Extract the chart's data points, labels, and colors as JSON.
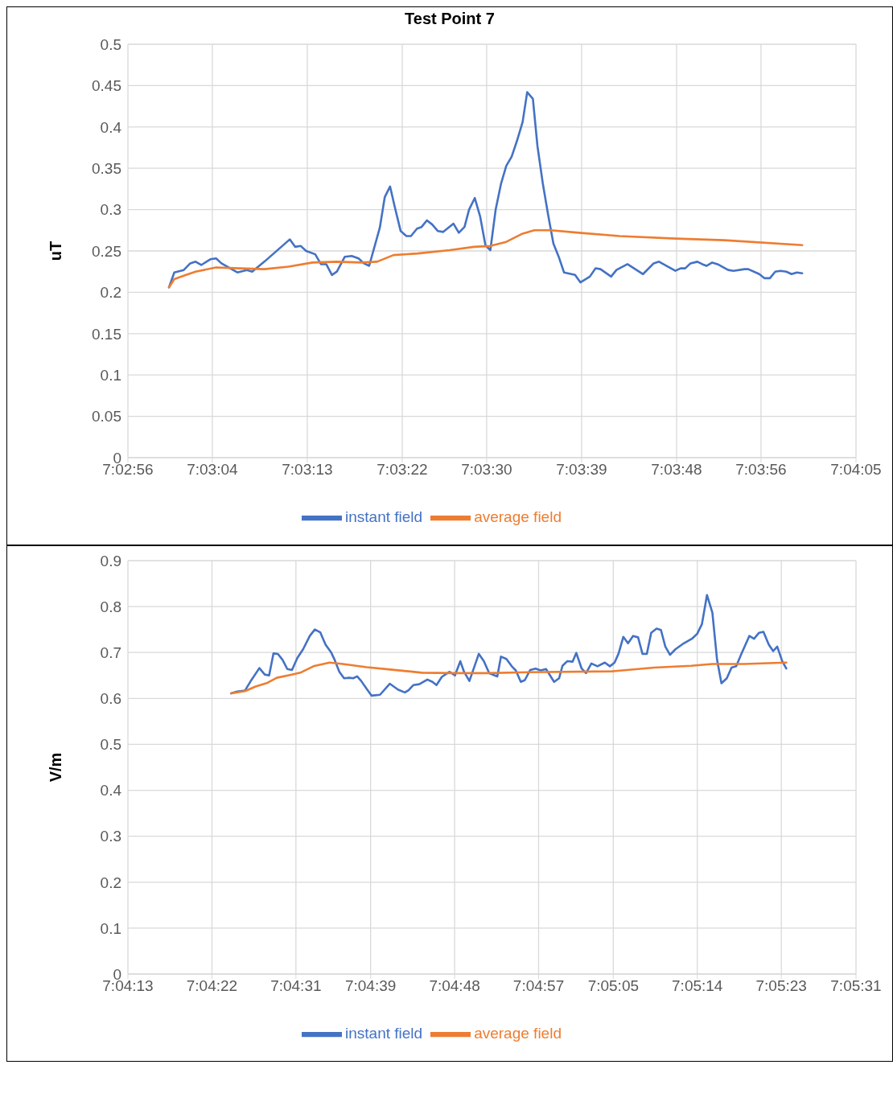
{
  "chart_data": [
    {
      "type": "line",
      "title": "Test Point 7",
      "ylabel": "uT",
      "xlim": [
        7.048889,
        7.068056
      ],
      "xticks": [
        {
          "value": 7.048889,
          "label": "7:02:56"
        },
        {
          "value": 7.051111,
          "label": "7:03:04"
        },
        {
          "value": 7.053611,
          "label": "7:03:13"
        },
        {
          "value": 7.056111,
          "label": "7:03:22"
        },
        {
          "value": 7.058333,
          "label": "7:03:30"
        },
        {
          "value": 7.060833,
          "label": "7:03:39"
        },
        {
          "value": 7.063333,
          "label": "7:03:48"
        },
        {
          "value": 7.065556,
          "label": "7:03:56"
        },
        {
          "value": 7.068056,
          "label": "7:04:05"
        }
      ],
      "ylim": [
        0,
        0.5
      ],
      "yticks": [
        0,
        0.05,
        0.1,
        0.15,
        0.2,
        0.25,
        0.3,
        0.35,
        0.4,
        0.45,
        0.5
      ],
      "grid": true,
      "legend": "bottom",
      "marker": "none",
      "line_style": "solid",
      "series": [
        {
          "name": "instant field",
          "color": "#4472c4",
          "x": [
            7.04997,
            7.05011,
            7.05036,
            7.05053,
            7.05067,
            7.05082,
            7.05106,
            7.05121,
            7.05135,
            7.05177,
            7.05202,
            7.05216,
            7.05248,
            7.05315,
            7.05329,
            7.05344,
            7.05358,
            7.05382,
            7.05397,
            7.05411,
            7.05426,
            7.05439,
            7.0546,
            7.05478,
            7.05496,
            7.0551,
            7.05524,
            7.05552,
            7.05565,
            7.05579,
            7.05591,
            7.05607,
            7.05622,
            7.05634,
            7.0565,
            7.05662,
            7.05676,
            7.0569,
            7.05705,
            7.05719,
            7.05746,
            7.0576,
            7.05775,
            7.05787,
            7.05802,
            7.05816,
            7.0583,
            7.05843,
            7.05857,
            7.05871,
            7.05885,
            7.05899,
            7.05913,
            7.05928,
            7.0594,
            7.05955,
            7.05967,
            7.05981,
            7.05995,
            7.06009,
            7.06023,
            7.06037,
            7.06066,
            7.0608,
            7.06105,
            7.0612,
            7.06133,
            7.06161,
            7.06175,
            7.06204,
            7.06245,
            7.06273,
            7.06287,
            7.0633,
            7.06344,
            7.06356,
            7.0637,
            7.06388,
            7.06401,
            7.06412,
            7.06427,
            7.06441,
            7.06469,
            7.06483,
            7.06512,
            7.06522,
            7.06551,
            7.06565,
            7.06579,
            7.06593,
            7.06607,
            7.06622,
            7.06636,
            7.0665,
            7.06664
          ],
          "values": [
            0.206,
            0.224,
            0.227,
            0.235,
            0.237,
            0.233,
            0.24,
            0.241,
            0.235,
            0.224,
            0.227,
            0.225,
            0.237,
            0.264,
            0.255,
            0.256,
            0.25,
            0.246,
            0.234,
            0.234,
            0.221,
            0.225,
            0.243,
            0.244,
            0.241,
            0.235,
            0.232,
            0.278,
            0.315,
            0.328,
            0.304,
            0.274,
            0.268,
            0.268,
            0.277,
            0.279,
            0.287,
            0.282,
            0.274,
            0.273,
            0.283,
            0.272,
            0.279,
            0.3,
            0.314,
            0.292,
            0.257,
            0.251,
            0.3,
            0.331,
            0.353,
            0.364,
            0.383,
            0.406,
            0.442,
            0.434,
            0.377,
            0.332,
            0.294,
            0.259,
            0.243,
            0.224,
            0.221,
            0.212,
            0.219,
            0.229,
            0.228,
            0.219,
            0.227,
            0.234,
            0.222,
            0.235,
            0.237,
            0.226,
            0.229,
            0.229,
            0.235,
            0.237,
            0.234,
            0.232,
            0.236,
            0.234,
            0.227,
            0.226,
            0.228,
            0.228,
            0.222,
            0.217,
            0.217,
            0.225,
            0.226,
            0.225,
            0.222,
            0.224,
            0.223
          ]
        },
        {
          "name": "average field",
          "color": "#ed7d31",
          "x": [
            7.04997,
            7.05011,
            7.05036,
            7.05067,
            7.05121,
            7.05184,
            7.05248,
            7.05312,
            7.05375,
            7.05439,
            7.05503,
            7.05545,
            7.05588,
            7.05652,
            7.05736,
            7.058,
            7.05843,
            7.05885,
            7.05928,
            7.05959,
            7.06002,
            7.06076,
            7.06183,
            7.06331,
            7.06459,
            7.06664
          ],
          "values": [
            0.206,
            0.216,
            0.22,
            0.225,
            0.23,
            0.229,
            0.228,
            0.231,
            0.236,
            0.237,
            0.236,
            0.237,
            0.245,
            0.247,
            0.251,
            0.255,
            0.256,
            0.261,
            0.271,
            0.275,
            0.275,
            0.272,
            0.268,
            0.265,
            0.263,
            0.257
          ]
        }
      ]
    },
    {
      "type": "line",
      "ylabel": "V/m",
      "xlim": [
        7.070278,
        7.091944
      ],
      "xticks": [
        {
          "value": 7.070278,
          "label": "7:04:13"
        },
        {
          "value": 7.072778,
          "label": "7:04:22"
        },
        {
          "value": 7.075278,
          "label": "7:04:31"
        },
        {
          "value": 7.0775,
          "label": "7:04:39"
        },
        {
          "value": 7.08,
          "label": "7:04:48"
        },
        {
          "value": 7.0825,
          "label": "7:04:57"
        },
        {
          "value": 7.084722,
          "label": "7:05:05"
        },
        {
          "value": 7.087222,
          "label": "7:05:14"
        },
        {
          "value": 7.089722,
          "label": "7:05:23"
        },
        {
          "value": 7.091944,
          "label": "7:05:31"
        }
      ],
      "ylim": [
        0,
        0.9
      ],
      "yticks": [
        0,
        0.1,
        0.2,
        0.3,
        0.4,
        0.5,
        0.6,
        0.7,
        0.8,
        0.9
      ],
      "grid": true,
      "legend": "bottom",
      "marker": "none",
      "line_style": "solid",
      "series": [
        {
          "name": "instant field",
          "color": "#4472c4",
          "x": [
            7.07335,
            7.07353,
            7.07376,
            7.07396,
            7.07419,
            7.07435,
            7.07448,
            7.07461,
            7.07474,
            7.07488,
            7.07502,
            7.07516,
            7.07532,
            7.07549,
            7.07569,
            7.07584,
            7.076,
            7.07616,
            7.07632,
            7.07643,
            7.07657,
            7.07671,
            7.07687,
            7.07698,
            7.0771,
            7.07722,
            7.07738,
            7.07753,
            7.07778,
            7.07807,
            7.07832,
            7.07852,
            7.07863,
            7.07877,
            7.07895,
            7.07919,
            7.07934,
            7.07946,
            7.07962,
            7.07985,
            7.08001,
            7.08017,
            7.08028,
            7.08044,
            7.08072,
            7.08087,
            7.08103,
            7.08127,
            7.08138,
            7.08154,
            7.0817,
            7.08182,
            7.08197,
            7.08209,
            7.08225,
            7.08241,
            7.08256,
            7.08272,
            7.08296,
            7.08311,
            7.08321,
            7.08335,
            7.08351,
            7.08362,
            7.08378,
            7.08391,
            7.08407,
            7.08425,
            7.08447,
            7.08462,
            7.08476,
            7.08488,
            7.08502,
            7.08516,
            7.08531,
            7.08546,
            7.08559,
            7.08572,
            7.08585,
            7.08601,
            7.08614,
            7.08627,
            7.08641,
            7.08657,
            7.08682,
            7.08708,
            7.08722,
            7.08736,
            7.08751,
            7.08767,
            7.08781,
            7.08794,
            7.0881,
            7.08824,
            7.08838,
            7.08854,
            7.08877,
            7.08891,
            7.08906,
            7.08919,
            7.08935,
            7.08948,
            7.0896,
            7.08975,
            7.08987
          ],
          "values": [
            0.611,
            0.615,
            0.617,
            0.641,
            0.666,
            0.652,
            0.65,
            0.698,
            0.697,
            0.684,
            0.664,
            0.662,
            0.688,
            0.707,
            0.736,
            0.75,
            0.744,
            0.717,
            0.701,
            0.684,
            0.658,
            0.644,
            0.645,
            0.644,
            0.648,
            0.638,
            0.621,
            0.606,
            0.608,
            0.632,
            0.619,
            0.613,
            0.618,
            0.629,
            0.631,
            0.641,
            0.636,
            0.629,
            0.647,
            0.658,
            0.65,
            0.681,
            0.658,
            0.638,
            0.697,
            0.681,
            0.655,
            0.648,
            0.691,
            0.686,
            0.67,
            0.661,
            0.636,
            0.64,
            0.662,
            0.665,
            0.661,
            0.664,
            0.636,
            0.644,
            0.671,
            0.681,
            0.68,
            0.699,
            0.665,
            0.655,
            0.676,
            0.67,
            0.678,
            0.67,
            0.678,
            0.698,
            0.734,
            0.72,
            0.736,
            0.733,
            0.697,
            0.697,
            0.743,
            0.752,
            0.749,
            0.713,
            0.695,
            0.707,
            0.72,
            0.731,
            0.741,
            0.762,
            0.825,
            0.787,
            0.684,
            0.633,
            0.644,
            0.667,
            0.67,
            0.698,
            0.736,
            0.73,
            0.743,
            0.745,
            0.717,
            0.703,
            0.713,
            0.681,
            0.665
          ]
        },
        {
          "name": "average field",
          "color": "#ed7d31",
          "x": [
            7.07335,
            7.07376,
            7.07408,
            7.07443,
            7.07471,
            7.0751,
            7.07541,
            7.0758,
            7.07628,
            7.07667,
            7.07738,
            7.07808,
            7.07903,
            7.07997,
            7.08099,
            7.08217,
            7.08468,
            7.08594,
            7.08704,
            7.08767,
            7.08862,
            7.08987
          ],
          "values": [
            0.611,
            0.616,
            0.626,
            0.634,
            0.645,
            0.651,
            0.656,
            0.67,
            0.678,
            0.675,
            0.668,
            0.663,
            0.656,
            0.655,
            0.655,
            0.657,
            0.659,
            0.667,
            0.671,
            0.675,
            0.675,
            0.678
          ]
        }
      ]
    }
  ]
}
